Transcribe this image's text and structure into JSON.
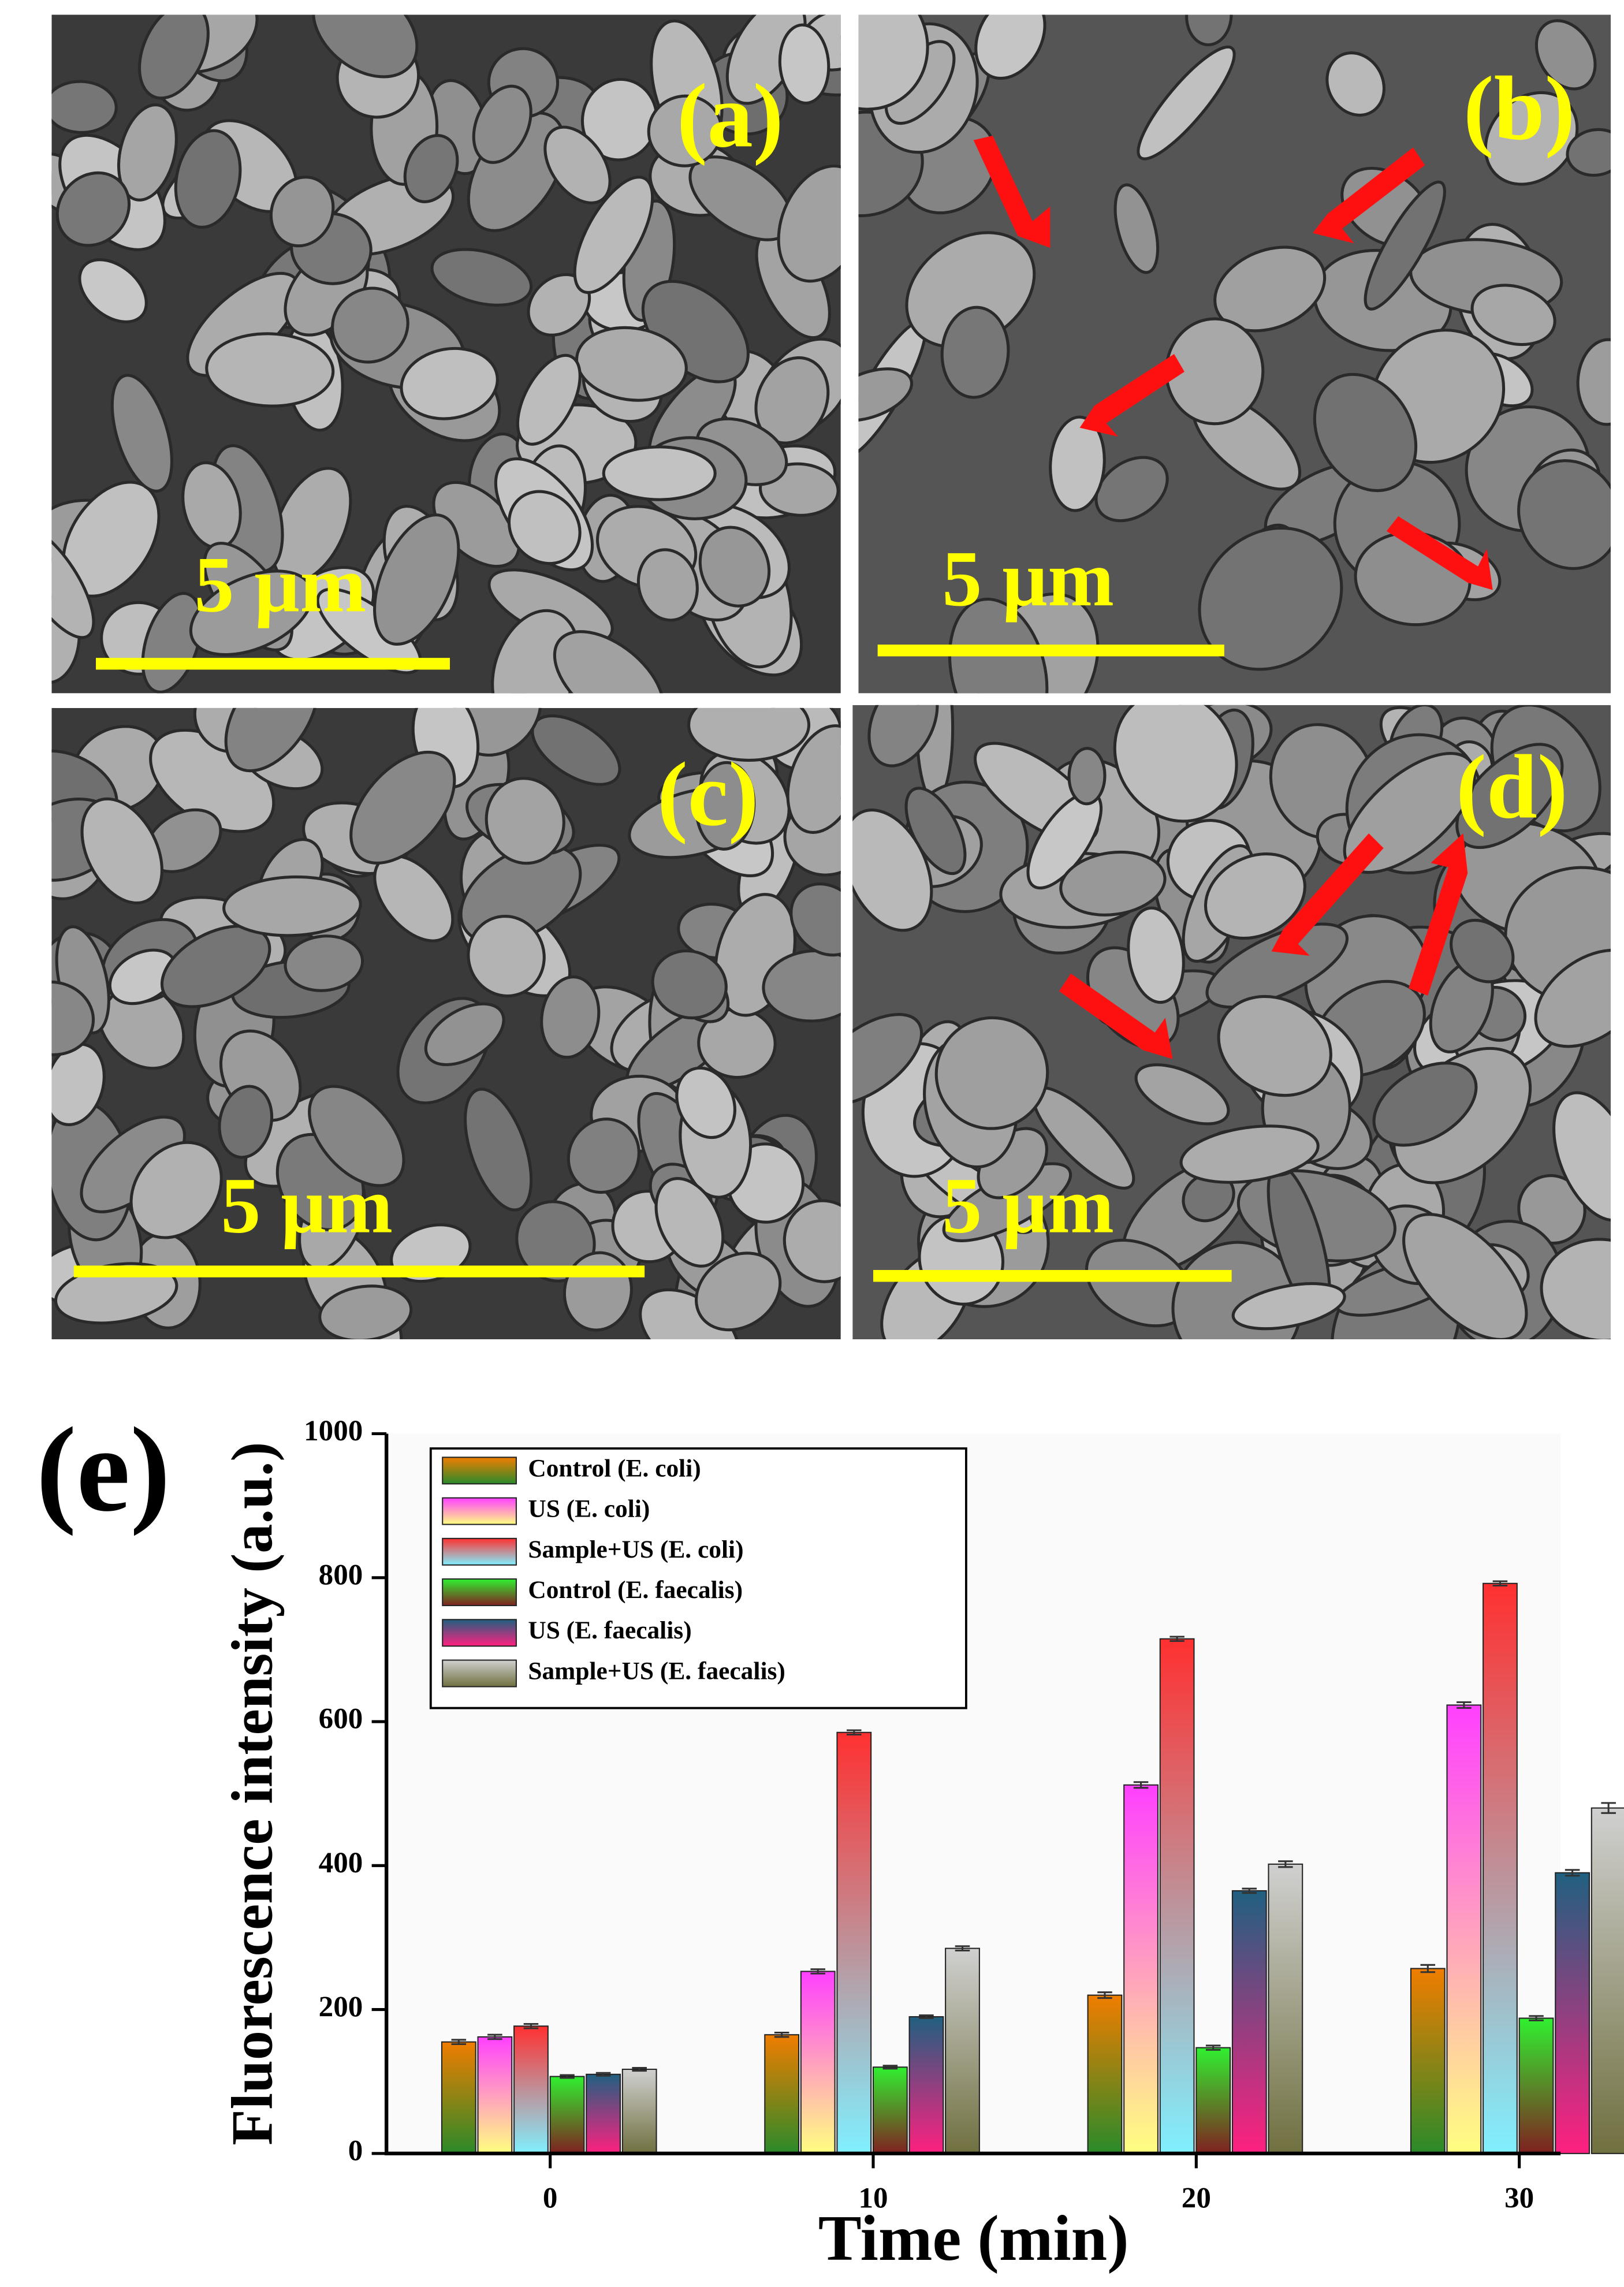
{
  "panels": [
    {
      "label": "(a)",
      "scale_bar": "5 µm"
    },
    {
      "label": "(b)",
      "scale_bar": "5 µm"
    },
    {
      "label": "(c)",
      "scale_bar": "5 µm"
    },
    {
      "label": "(d)",
      "scale_bar": "5 µm"
    }
  ],
  "chart_data": {
    "type": "bar",
    "panel_label": "(e)",
    "x_label": "Time (min)",
    "y_label": "Fluorescence intensity (a.u.)",
    "categories": [
      "0",
      "10",
      "20",
      "30"
    ],
    "ylim": [
      0,
      1000
    ],
    "yticks": [
      0,
      200,
      400,
      600,
      800,
      1000
    ],
    "series": [
      {
        "name": "Control (E. coli)",
        "color": "#f07d00",
        "gradient": "#2a8a2a",
        "values": [
          155,
          165,
          220,
          257
        ],
        "errors": [
          3,
          3,
          4,
          5
        ]
      },
      {
        "name": "US (E. coli)",
        "color": "#ff40ff",
        "gradient": "#ffff80",
        "values": [
          162,
          253,
          512,
          623
        ],
        "errors": [
          3,
          3,
          4,
          4
        ]
      },
      {
        "name": "Sample+US (E. coli)",
        "color": "#ff3030",
        "gradient": "#80f0ff",
        "values": [
          177,
          585,
          715,
          792
        ],
        "errors": [
          3,
          3,
          3,
          3
        ]
      },
      {
        "name": "Control (E. faecalis)",
        "color": "#30f030",
        "gradient": "#802020",
        "values": [
          107,
          120,
          147,
          188
        ],
        "errors": [
          2,
          2,
          3,
          3
        ]
      },
      {
        "name": "US (E. faecalis)",
        "color": "#206080",
        "gradient": "#ff2080",
        "values": [
          110,
          190,
          365,
          390
        ],
        "errors": [
          2,
          2,
          3,
          4
        ]
      },
      {
        "name": "Sample+US (E. faecalis)",
        "color": "#d0d0d0",
        "gradient": "#707040",
        "values": [
          117,
          285,
          402,
          480
        ],
        "errors": [
          2,
          3,
          4,
          7
        ]
      }
    ]
  }
}
